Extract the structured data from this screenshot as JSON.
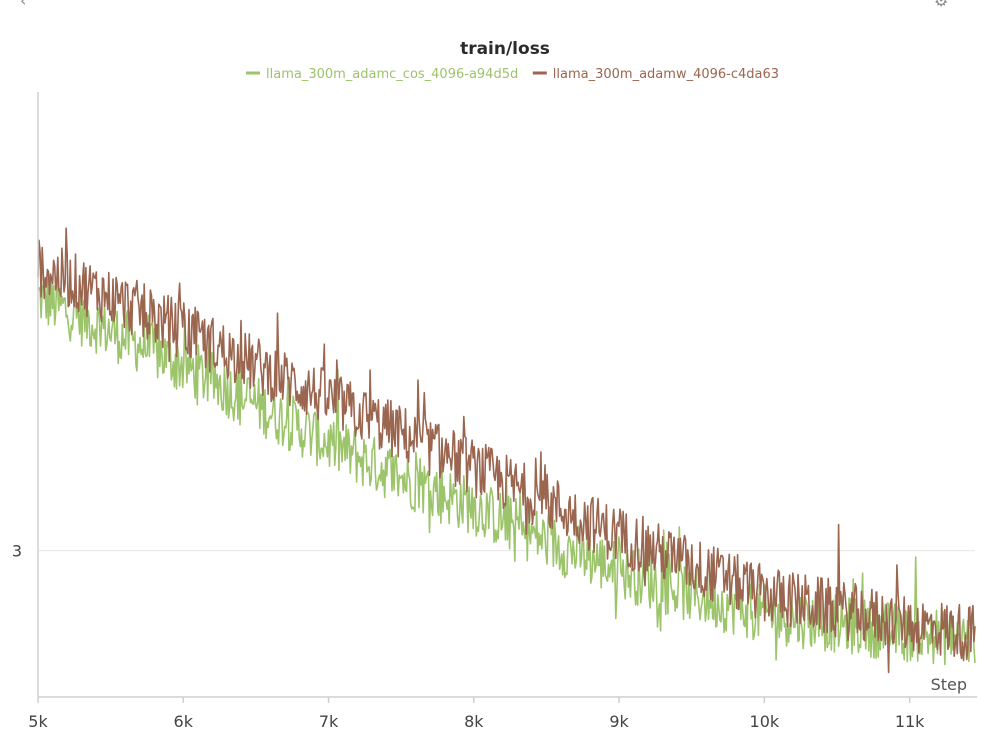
{
  "chart_data": {
    "type": "line",
    "title": "train/loss",
    "xlabel": "Step",
    "ylabel": "",
    "xlim": [
      5000,
      11450
    ],
    "ylim": [
      2.85,
      3.47
    ],
    "x_ticks": [
      {
        "value": 5000,
        "label": "5k"
      },
      {
        "value": 6000,
        "label": "6k"
      },
      {
        "value": 7000,
        "label": "7k"
      },
      {
        "value": 8000,
        "label": "8k"
      },
      {
        "value": 9000,
        "label": "9k"
      },
      {
        "value": 10000,
        "label": "10k"
      },
      {
        "value": 11000,
        "label": "11k"
      }
    ],
    "y_ticks": [
      {
        "value": 3.0,
        "label": "3"
      }
    ],
    "grid": "horizontal",
    "legend_position": "top-center",
    "series": [
      {
        "name": "llama_300m_adamc_cos_4096-a94d5d",
        "color": "#9cc46a",
        "x": [
          5000,
          5500,
          6000,
          6500,
          7000,
          7500,
          8000,
          8500,
          9000,
          9500,
          10000,
          10500,
          11000,
          11450
        ],
        "y": [
          3.26,
          3.225,
          3.19,
          3.15,
          3.11,
          3.075,
          3.045,
          3.01,
          2.98,
          2.955,
          2.935,
          2.925,
          2.915,
          2.91
        ]
      },
      {
        "name": "llama_300m_adamw_4096-c4da63",
        "color": "#9a6650",
        "x": [
          5000,
          5500,
          6000,
          6500,
          7000,
          7500,
          8000,
          8500,
          9000,
          9500,
          10000,
          10500,
          11000,
          11450
        ],
        "y": [
          3.29,
          3.26,
          3.225,
          3.19,
          3.155,
          3.12,
          3.085,
          3.05,
          3.015,
          2.985,
          2.955,
          2.94,
          2.925,
          2.915
        ]
      }
    ]
  },
  "icons": {
    "back": "chevron-left-icon",
    "settings": "gear-icon"
  }
}
